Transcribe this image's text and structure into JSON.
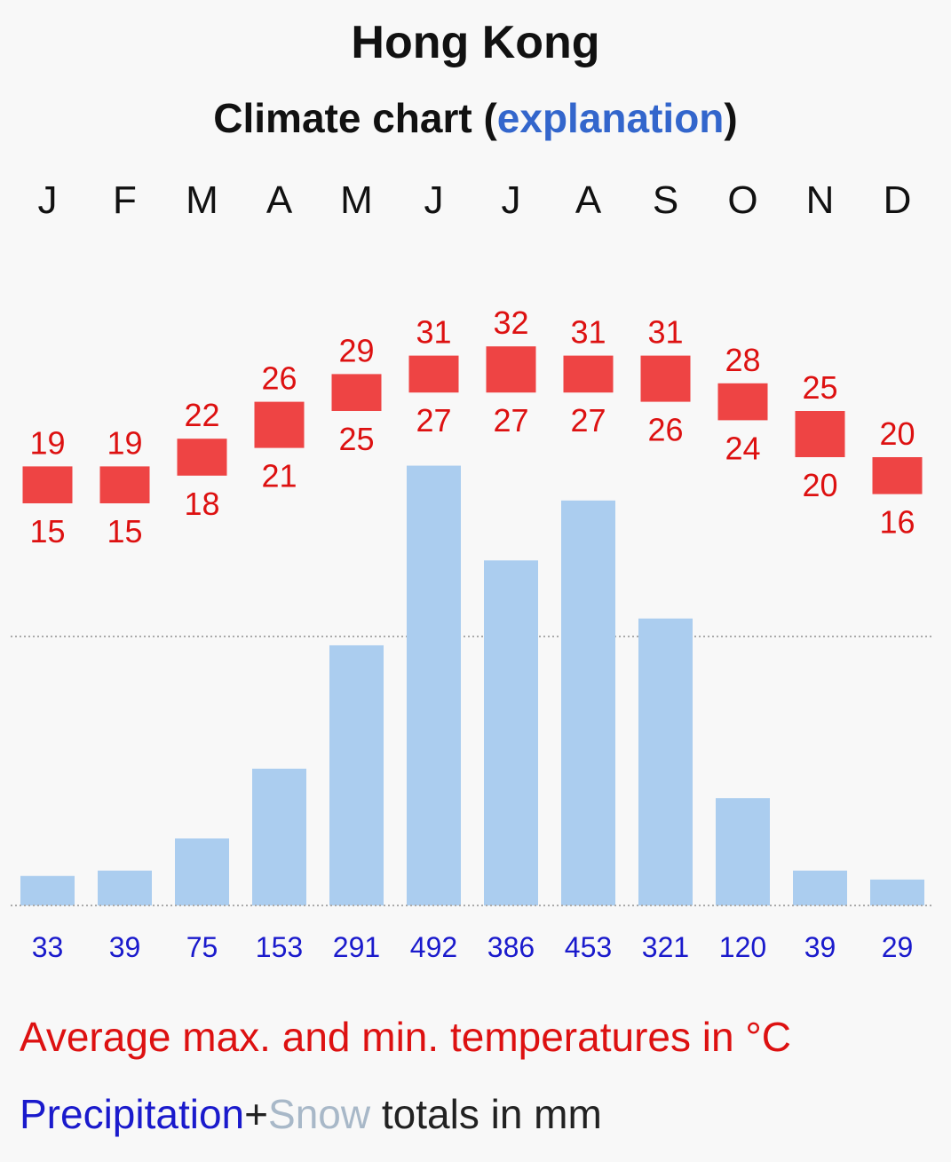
{
  "title": "Hong Kong",
  "subtitle": {
    "prefix": "Climate chart (",
    "link": "explanation",
    "suffix": ")"
  },
  "legend": {
    "temperature": "Average max. and min. temperatures in °C",
    "precip_word": "Precipitation",
    "plus": "+",
    "snow_word": "Snow",
    "totals": " totals in mm"
  },
  "colors": {
    "temp_box": "#ee4444",
    "temp_text": "#dd1111",
    "bar": "#abcdef",
    "precip_text": "#1a1acc"
  },
  "chart_data": {
    "type": "bar",
    "title": "Hong Kong",
    "categories": [
      "J",
      "F",
      "M",
      "A",
      "M",
      "J",
      "J",
      "A",
      "S",
      "O",
      "N",
      "D"
    ],
    "series": [
      {
        "name": "Average max. temperature (°C)",
        "values": [
          19,
          19,
          22,
          26,
          29,
          31,
          32,
          31,
          31,
          28,
          25,
          20
        ]
      },
      {
        "name": "Average min. temperature (°C)",
        "values": [
          15,
          15,
          18,
          21,
          25,
          27,
          27,
          27,
          26,
          24,
          20,
          16
        ]
      },
      {
        "name": "Precipitation (mm)",
        "values": [
          33,
          39,
          75,
          153,
          291,
          492,
          386,
          453,
          321,
          120,
          39,
          29
        ]
      }
    ],
    "grid": "dotted baseline and mid line"
  }
}
